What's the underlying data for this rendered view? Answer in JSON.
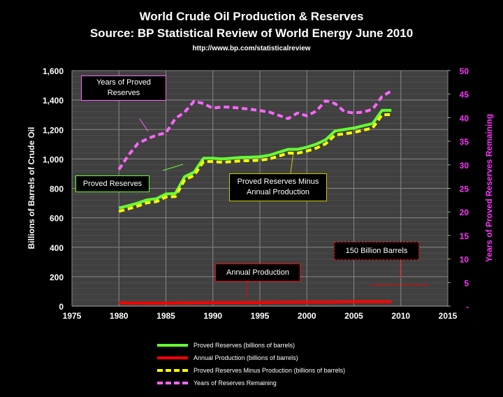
{
  "chart_data": {
    "type": "line",
    "title": "World Crude Oil Production & Reserves",
    "subtitle": "Source: BP Statistical Review of World Energy June 2010",
    "url": "http://www.bp.com/statisticalreview",
    "ylabel": "Billions of Barrels of Crude Oil",
    "y2label": "Years of Proved Reserves Remaining",
    "xlim": [
      1975,
      2015
    ],
    "ylim": [
      0,
      1600
    ],
    "y2lim": [
      0,
      50
    ],
    "xticks": [
      "1975",
      "1980",
      "1985",
      "1990",
      "1995",
      "2000",
      "2005",
      "2010",
      "2015"
    ],
    "yticks": [
      "0",
      "200",
      "400",
      "600",
      "800",
      "1,000",
      "1,200",
      "1,400",
      "1,600"
    ],
    "y2ticks": [
      "-",
      "5",
      "10",
      "15",
      "20",
      "25",
      "30",
      "35",
      "40",
      "45",
      "50"
    ],
    "x": [
      1980,
      1981,
      1982,
      1983,
      1984,
      1985,
      1986,
      1987,
      1988,
      1989,
      1990,
      1991,
      1992,
      1993,
      1994,
      1995,
      1996,
      1997,
      1998,
      1999,
      2000,
      2001,
      2002,
      2003,
      2004,
      2005,
      2006,
      2007,
      2008,
      2009
    ],
    "series": [
      {
        "name": "Proved Reserves (billions of barrels)",
        "color": "#66ff33",
        "style": "solid",
        "axis": "left",
        "values": [
          667,
          682,
          700,
          722,
          730,
          762,
          765,
          880,
          910,
          1005,
          1005,
          1000,
          1005,
          1010,
          1012,
          1015,
          1025,
          1045,
          1065,
          1065,
          1080,
          1100,
          1130,
          1190,
          1200,
          1210,
          1225,
          1240,
          1330,
          1330
        ]
      },
      {
        "name": "Annual Production (billions of barrels)",
        "color": "#ff0000",
        "style": "solid",
        "axis": "left",
        "values": [
          23,
          21,
          20,
          20,
          20,
          20,
          21,
          22,
          22,
          23,
          23,
          23,
          23,
          23,
          24,
          24,
          25,
          26,
          26,
          26,
          27,
          27,
          27,
          28,
          29,
          30,
          30,
          30,
          30,
          29
        ]
      },
      {
        "name": "Proved Reserves Minus Production (billions of barrels)",
        "color": "#ffff00",
        "style": "dashed",
        "axis": "left",
        "values": [
          644,
          661,
          680,
          702,
          710,
          742,
          744,
          858,
          888,
          982,
          982,
          977,
          982,
          987,
          988,
          991,
          1000,
          1019,
          1039,
          1039,
          1053,
          1073,
          1103,
          1162,
          1171,
          1180,
          1195,
          1210,
          1300,
          1301
        ]
      },
      {
        "name": "Years of Reserves Remaining",
        "color": "#ff66ff",
        "style": "dashed",
        "axis": "right",
        "values": [
          29,
          32,
          34.5,
          35.5,
          36.3,
          36.8,
          39.8,
          41.2,
          43.5,
          43,
          42,
          42.3,
          42.2,
          42,
          41.8,
          41.5,
          41.2,
          40.5,
          39.8,
          41,
          40.4,
          41.4,
          43.6,
          43,
          41.3,
          41,
          41.2,
          41.8,
          44.5,
          45.7
        ]
      }
    ],
    "annotations": {
      "years": "Years of Proved Reserves",
      "proved": "Proved Reserves",
      "minus": "Proved Reserves Minus Annual Production",
      "annual": "Annual Production",
      "barrels": "150 Billion Barrels"
    },
    "legend": "bottom"
  }
}
